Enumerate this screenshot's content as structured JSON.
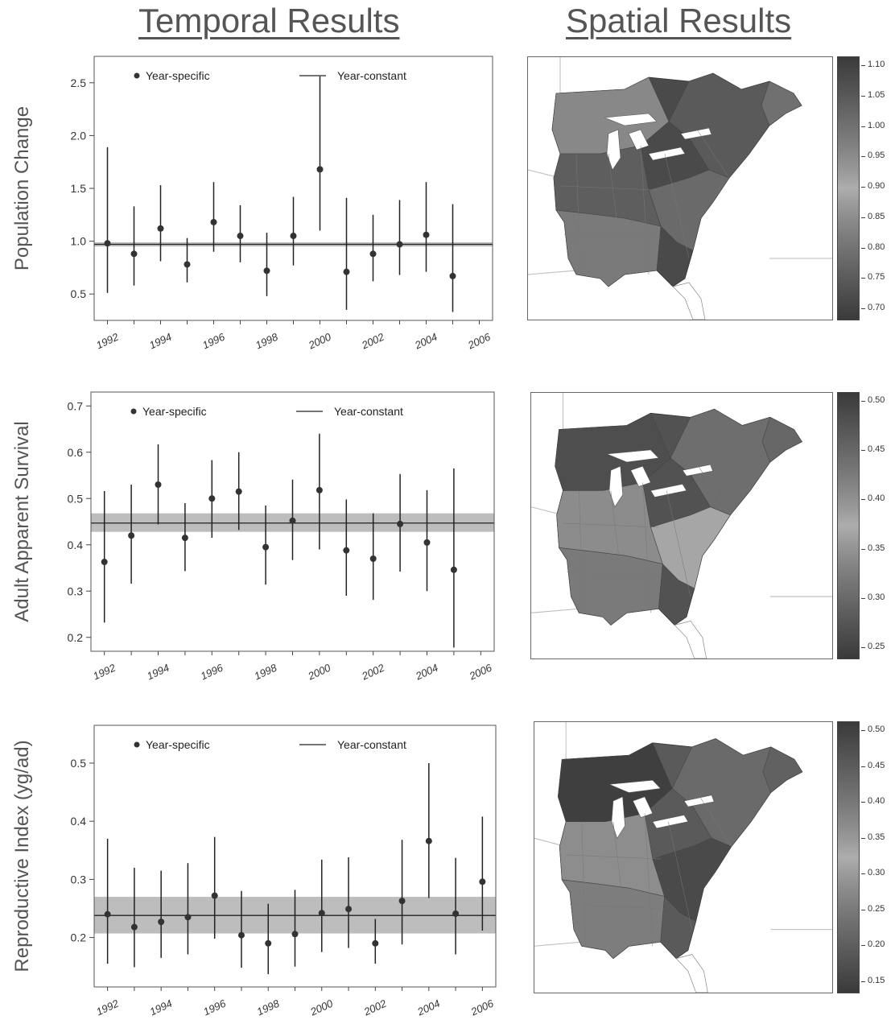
{
  "headings": {
    "temporal": "Temporal Results",
    "spatial": "Spatial Results"
  },
  "chart_data": [
    {
      "type": "scatter",
      "title": "",
      "ylabel": "Population Change",
      "xlabel": "",
      "x_ticks": [
        "1992",
        "1994",
        "1996",
        "1998",
        "2000",
        "2002",
        "2004",
        "2006"
      ],
      "y_ticks": [
        "0.5",
        "1.0",
        "1.5",
        "2.0",
        "2.5"
      ],
      "ylim": [
        0.25,
        2.75
      ],
      "xlim": [
        1991.5,
        2006.5
      ],
      "legend": {
        "point_label": "Year-specific",
        "line_label": "Year-constant",
        "placement": "top"
      },
      "year_constant": {
        "value": 0.97,
        "lower": 0.95,
        "upper": 0.99
      },
      "series": [
        {
          "name": "Year-specific",
          "x": [
            1992,
            1993,
            1994,
            1995,
            1996,
            1997,
            1998,
            1999,
            2000,
            2001,
            2002,
            2003,
            2004,
            2005
          ],
          "y": [
            0.98,
            0.88,
            1.12,
            0.78,
            1.18,
            1.05,
            0.72,
            1.05,
            1.68,
            0.71,
            0.88,
            0.97,
            1.06,
            0.67
          ],
          "lower": [
            0.51,
            0.58,
            0.81,
            0.61,
            0.9,
            0.8,
            0.48,
            0.77,
            1.1,
            0.35,
            0.62,
            0.68,
            0.71,
            0.33
          ],
          "upper": [
            1.89,
            1.33,
            1.53,
            1.03,
            1.56,
            1.34,
            1.08,
            1.42,
            2.56,
            1.41,
            1.25,
            1.39,
            1.56,
            1.35
          ]
        }
      ]
    },
    {
      "type": "scatter",
      "title": "",
      "ylabel": "Adult Apparent Survival",
      "xlabel": "",
      "x_ticks": [
        "1992",
        "1994",
        "1996",
        "1998",
        "2000",
        "2002",
        "2004",
        "2006"
      ],
      "y_ticks": [
        "0.2",
        "0.3",
        "0.4",
        "0.5",
        "0.6",
        "0.7"
      ],
      "ylim": [
        0.17,
        0.73
      ],
      "xlim": [
        1991.5,
        2006.5
      ],
      "legend": {
        "point_label": "Year-specific",
        "line_label": "Year-constant",
        "placement": "top"
      },
      "year_constant": {
        "value": 0.447,
        "lower": 0.428,
        "upper": 0.468
      },
      "series": [
        {
          "name": "Year-specific",
          "x": [
            1992,
            1993,
            1994,
            1995,
            1996,
            1997,
            1998,
            1999,
            2000,
            2001,
            2002,
            2003,
            2004,
            2005
          ],
          "y": [
            0.363,
            0.42,
            0.53,
            0.415,
            0.5,
            0.515,
            0.395,
            0.452,
            0.518,
            0.388,
            0.37,
            0.445,
            0.405,
            0.346
          ],
          "lower": [
            0.232,
            0.316,
            0.444,
            0.343,
            0.415,
            0.432,
            0.314,
            0.367,
            0.39,
            0.29,
            0.281,
            0.342,
            0.3,
            0.178
          ],
          "upper": [
            0.516,
            0.53,
            0.617,
            0.49,
            0.583,
            0.6,
            0.485,
            0.541,
            0.64,
            0.498,
            0.468,
            0.553,
            0.518,
            0.565
          ]
        }
      ]
    },
    {
      "type": "scatter",
      "title": "",
      "ylabel": "Reproductive Index (yg/ad)",
      "xlabel": "",
      "x_ticks": [
        "1992",
        "1994",
        "1996",
        "1998",
        "2000",
        "2002",
        "2004",
        "2006"
      ],
      "y_ticks": [
        "0.2",
        "0.3",
        "0.4",
        "0.5"
      ],
      "ylim": [
        0.115,
        0.565
      ],
      "xlim": [
        1991.5,
        2006.5
      ],
      "legend": {
        "point_label": "Year-specific",
        "line_label": "Year-constant",
        "placement": "top"
      },
      "year_constant": {
        "value": 0.238,
        "lower": 0.207,
        "upper": 0.27
      },
      "series": [
        {
          "name": "Year-specific",
          "x": [
            1992,
            1993,
            1994,
            1995,
            1996,
            1997,
            1998,
            1999,
            2000,
            2001,
            2002,
            2003,
            2004,
            2005,
            2006
          ],
          "y": [
            0.24,
            0.218,
            0.227,
            0.235,
            0.272,
            0.204,
            0.19,
            0.206,
            0.242,
            0.249,
            0.19,
            0.263,
            0.366,
            0.241,
            0.296
          ],
          "lower": [
            0.155,
            0.149,
            0.165,
            0.171,
            0.198,
            0.148,
            0.137,
            0.15,
            0.175,
            0.182,
            0.155,
            0.188,
            0.268,
            0.171,
            0.212
          ],
          "upper": [
            0.37,
            0.32,
            0.315,
            0.328,
            0.373,
            0.28,
            0.258,
            0.282,
            0.334,
            0.338,
            0.232,
            0.368,
            0.5,
            0.337,
            0.408
          ]
        }
      ]
    }
  ],
  "colorbars": [
    {
      "ticks": [
        "1.10",
        "1.05",
        "1.00",
        "0.95",
        "0.90",
        "0.85",
        "0.80",
        "0.75",
        "0.70"
      ],
      "colors": [
        "#3a3a3a",
        "#474747",
        "#545454",
        "#616161",
        "#6e6e6e",
        "#7b7b7b",
        "#8a8a8a",
        "#9a9a9a",
        "#adadad",
        "#9a9a9a",
        "#8a8a8a",
        "#7b7b7b",
        "#6e6e6e",
        "#616161",
        "#545454",
        "#474747",
        "#3a3a3a"
      ]
    },
    {
      "ticks": [
        "0.50",
        "0.45",
        "0.40",
        "0.35",
        "0.30",
        "0.25"
      ],
      "colors": [
        "#3a3a3a",
        "#474747",
        "#545454",
        "#616161",
        "#6e6e6e",
        "#7b7b7b",
        "#8a8a8a",
        "#9a9a9a",
        "#adadad",
        "#9a9a9a",
        "#8a8a8a",
        "#7b7b7b",
        "#6e6e6e",
        "#616161",
        "#545454",
        "#474747",
        "#3a3a3a"
      ]
    },
    {
      "ticks": [
        "0.50",
        "0.45",
        "0.40",
        "0.35",
        "0.30",
        "0.25",
        "0.20",
        "0.15"
      ],
      "colors": [
        "#3a3a3a",
        "#474747",
        "#545454",
        "#616161",
        "#6e6e6e",
        "#7b7b7b",
        "#8a8a8a",
        "#9a9a9a",
        "#adadad",
        "#9a9a9a",
        "#8a8a8a",
        "#7b7b7b",
        "#6e6e6e",
        "#616161",
        "#545454",
        "#474747",
        "#3a3a3a"
      ]
    }
  ],
  "colors": {
    "ci_band": "#bdbdbd",
    "points": "#333333",
    "lines": "#222222"
  }
}
